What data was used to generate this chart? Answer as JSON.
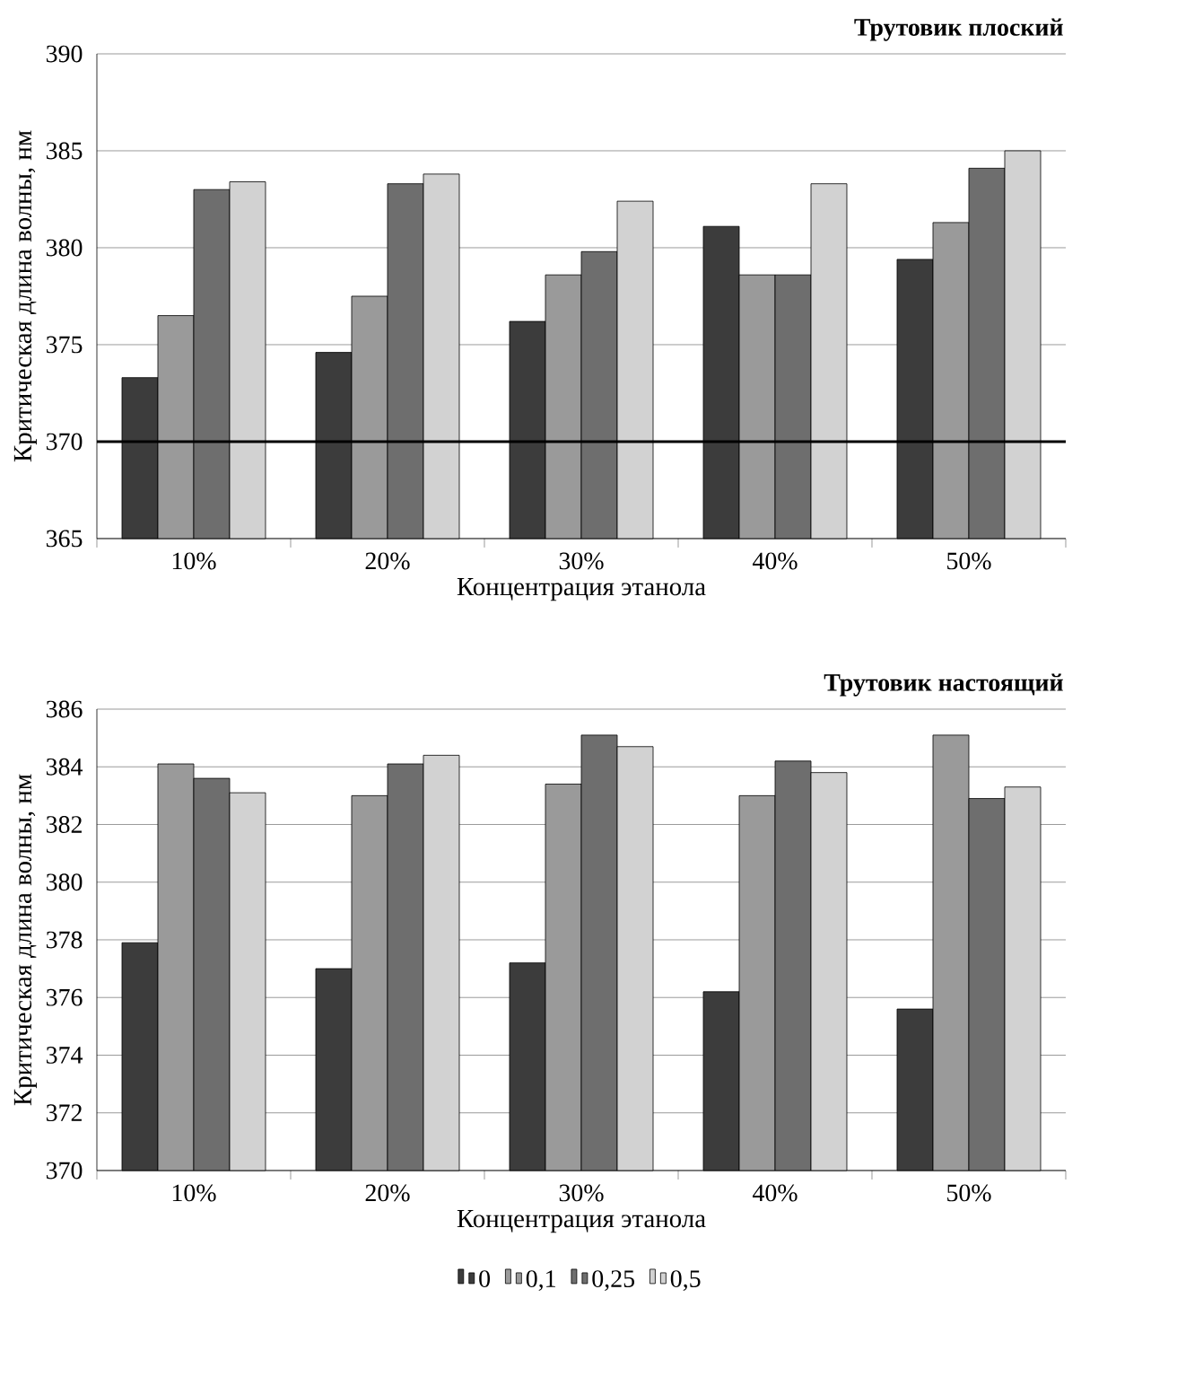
{
  "chart_data": [
    {
      "type": "bar",
      "title": "Трутовик плоский",
      "xlabel": "Концентрация этанола",
      "ylabel": "Критическая длина волны, нм",
      "categories": [
        "10%",
        "20%",
        "30%",
        "40%",
        "50%"
      ],
      "ylim": [
        365,
        390
      ],
      "yticks": [
        365,
        370,
        375,
        380,
        385,
        390
      ],
      "grid": "y",
      "legend": false,
      "series": [
        {
          "color": "#3c3c3c",
          "values": [
            373.3,
            374.6,
            376.2,
            381.1,
            379.4
          ]
        },
        {
          "color": "#9a9a9a",
          "values": [
            376.5,
            377.5,
            378.6,
            378.6,
            381.3
          ]
        },
        {
          "color": "#6e6e6e",
          "values": [
            383.0,
            383.3,
            379.8,
            378.6,
            384.1
          ]
        },
        {
          "color": "#d2d2d2",
          "values": [
            383.4,
            383.8,
            382.4,
            383.3,
            385.0
          ]
        }
      ],
      "ref_lines": [
        {
          "axis": "y",
          "value": 370,
          "color": "#000000"
        }
      ]
    },
    {
      "type": "bar",
      "title": "Трутовик настоящий",
      "xlabel": "Концентрация этанола",
      "ylabel": "Критическая длина волны, нм",
      "categories": [
        "10%",
        "20%",
        "30%",
        "40%",
        "50%"
      ],
      "ylim": [
        370,
        386
      ],
      "yticks": [
        370,
        372,
        374,
        376,
        378,
        380,
        382,
        384,
        386
      ],
      "grid": "y",
      "legend": "bottom",
      "series": [
        {
          "name": "0",
          "color": "#3c3c3c",
          "values": [
            377.9,
            377.0,
            377.2,
            376.2,
            375.6
          ]
        },
        {
          "name": "0,1",
          "color": "#9a9a9a",
          "values": [
            384.1,
            383.0,
            383.4,
            383.0,
            385.1
          ]
        },
        {
          "name": "0,25",
          "color": "#6e6e6e",
          "values": [
            383.6,
            384.1,
            385.1,
            384.2,
            382.9
          ]
        },
        {
          "name": "0,5",
          "color": "#d2d2d2",
          "values": [
            383.1,
            384.4,
            384.7,
            383.8,
            383.3
          ]
        }
      ]
    }
  ]
}
